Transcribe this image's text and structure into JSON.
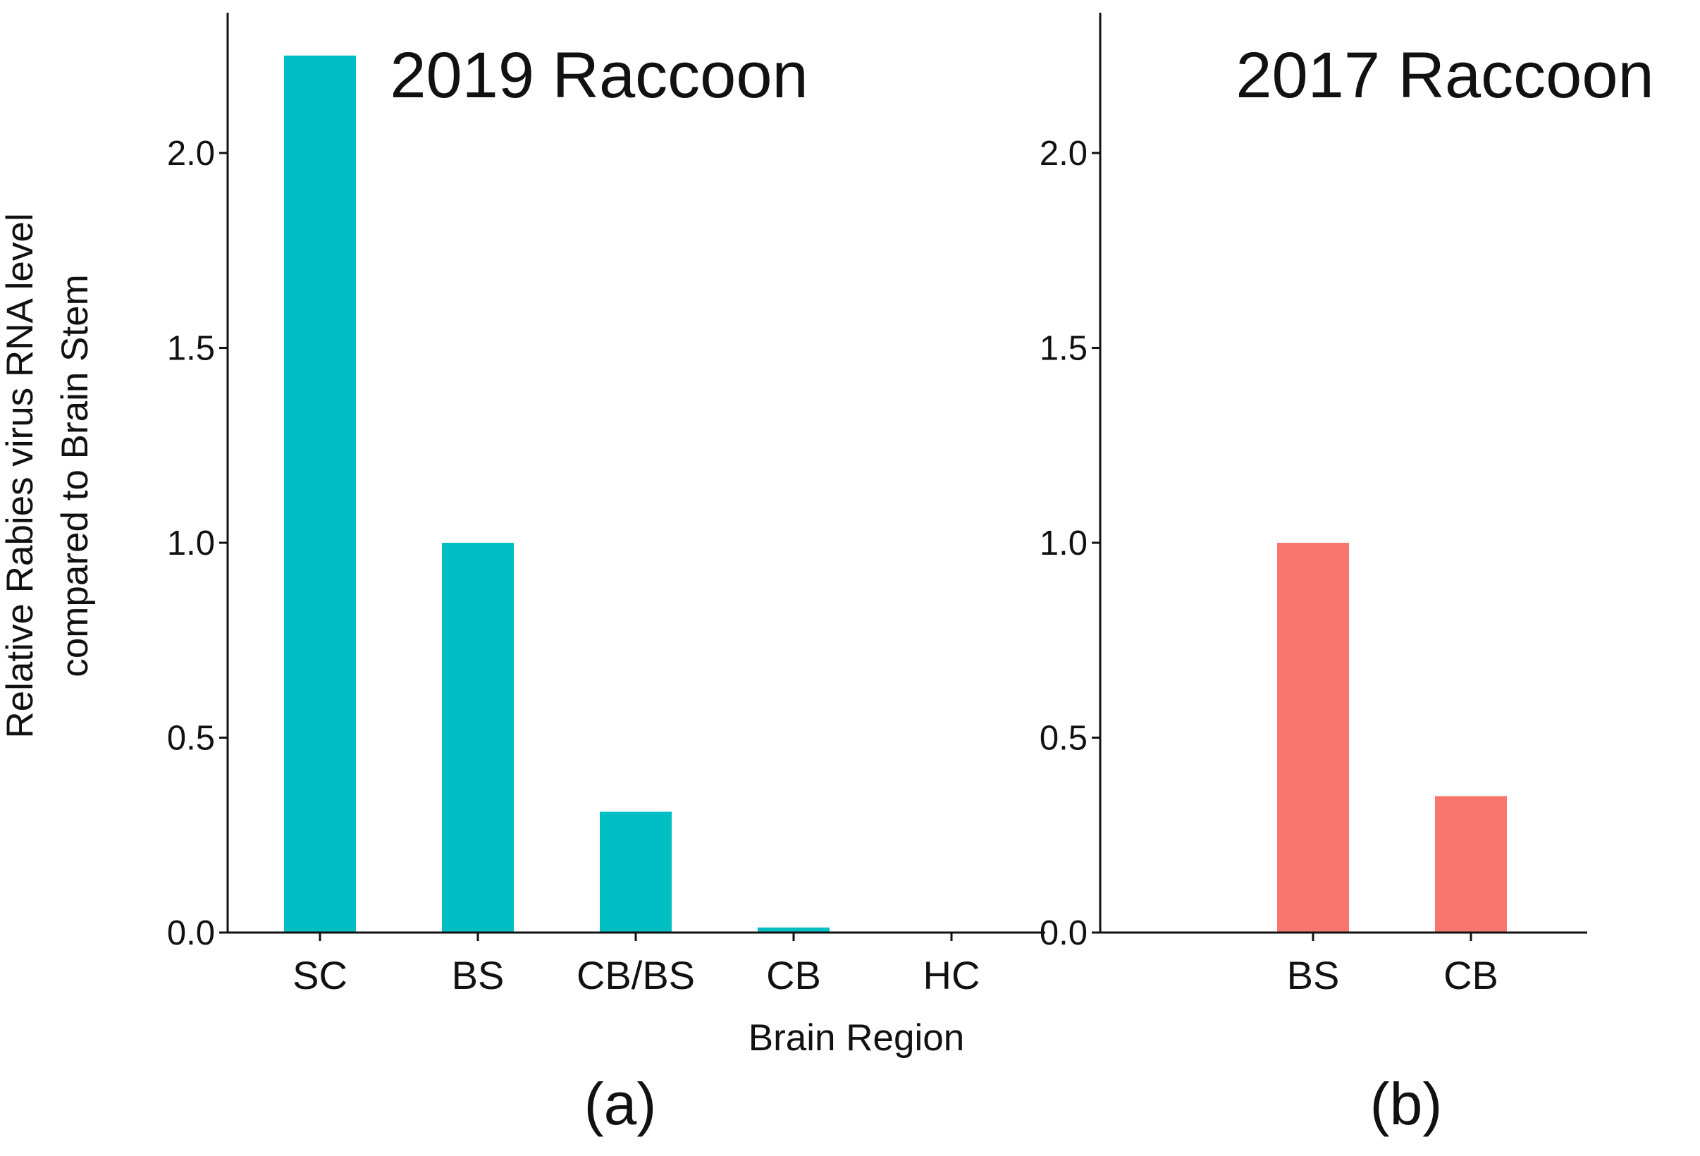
{
  "chart_data": [
    {
      "type": "bar",
      "panel": "a",
      "panel_letter": "(a)",
      "title": "2019 Raccoon",
      "categories": [
        "SC",
        "BS",
        "CB/BS",
        "CB",
        "HC"
      ],
      "values": [
        2.25,
        1.0,
        0.31,
        0.013,
        0.0
      ],
      "ylabel_lines": [
        "Relative Rabies virus RNA level",
        "compared to Brain Stem"
      ],
      "xlabel": "Brain Region",
      "ylim": [
        0,
        2.36
      ],
      "yticks": [
        0.0,
        0.5,
        1.0,
        1.5,
        2.0
      ],
      "ytick_labels": [
        "0.0",
        "0.5",
        "1.0",
        "1.5",
        "2.0"
      ],
      "grid": false,
      "bar_color": "#00BFC4"
    },
    {
      "type": "bar",
      "panel": "b",
      "panel_letter": "(b)",
      "title": "2017 Raccoon",
      "categories": [
        "BS",
        "CB"
      ],
      "values": [
        1.0,
        0.35
      ],
      "xlabel": "",
      "ylim": [
        0,
        2.36
      ],
      "yticks": [
        0.0,
        0.5,
        1.0,
        1.5,
        2.0
      ],
      "ytick_labels": [
        "0.0",
        "0.5",
        "1.0",
        "1.5",
        "2.0"
      ],
      "grid": false,
      "bar_color": "#F8766D"
    }
  ]
}
